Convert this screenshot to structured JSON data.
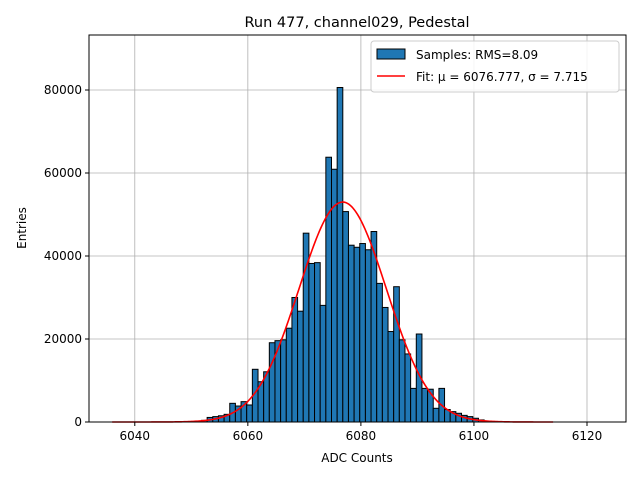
{
  "chart_data": {
    "type": "bar",
    "title": "Run 477, channel029, Pedestal",
    "xlabel": "ADC Counts",
    "ylabel": "Entries",
    "xlim": [
      6031.9,
      6126.9
    ],
    "ylim": [
      0,
      93250
    ],
    "xticks": [
      6040,
      6060,
      6080,
      6100,
      6120
    ],
    "yticks": [
      0,
      20000,
      40000,
      60000,
      80000
    ],
    "grid": true,
    "legend_position": "top-right",
    "histogram": {
      "name": "Samples: RMS=8.09",
      "color": "#1f77b4",
      "bin_start": 6051.8,
      "bin_width": 1,
      "values": [
        400,
        1100,
        1300,
        1500,
        1850,
        4500,
        3850,
        4900,
        4100,
        12700,
        9700,
        12100,
        19100,
        19600,
        19800,
        22600,
        30000,
        26700,
        45500,
        38200,
        38400,
        28100,
        63800,
        60900,
        80600,
        50700,
        42600,
        42100,
        43000,
        41500,
        45900,
        33400,
        27600,
        21800,
        32600,
        19800,
        16400,
        8100,
        21200,
        8100,
        7900,
        3300,
        8100,
        3000,
        2500,
        2100,
        1600,
        1300,
        900,
        500
      ]
    },
    "fit": {
      "name": "Fit: μ = 6076.777, σ = 7.715",
      "color": "#ff0000",
      "type": "gaussian",
      "mu": 6076.777,
      "sigma": 7.715,
      "amplitude": 53000,
      "x_range": [
        6036,
        6114
      ]
    }
  }
}
